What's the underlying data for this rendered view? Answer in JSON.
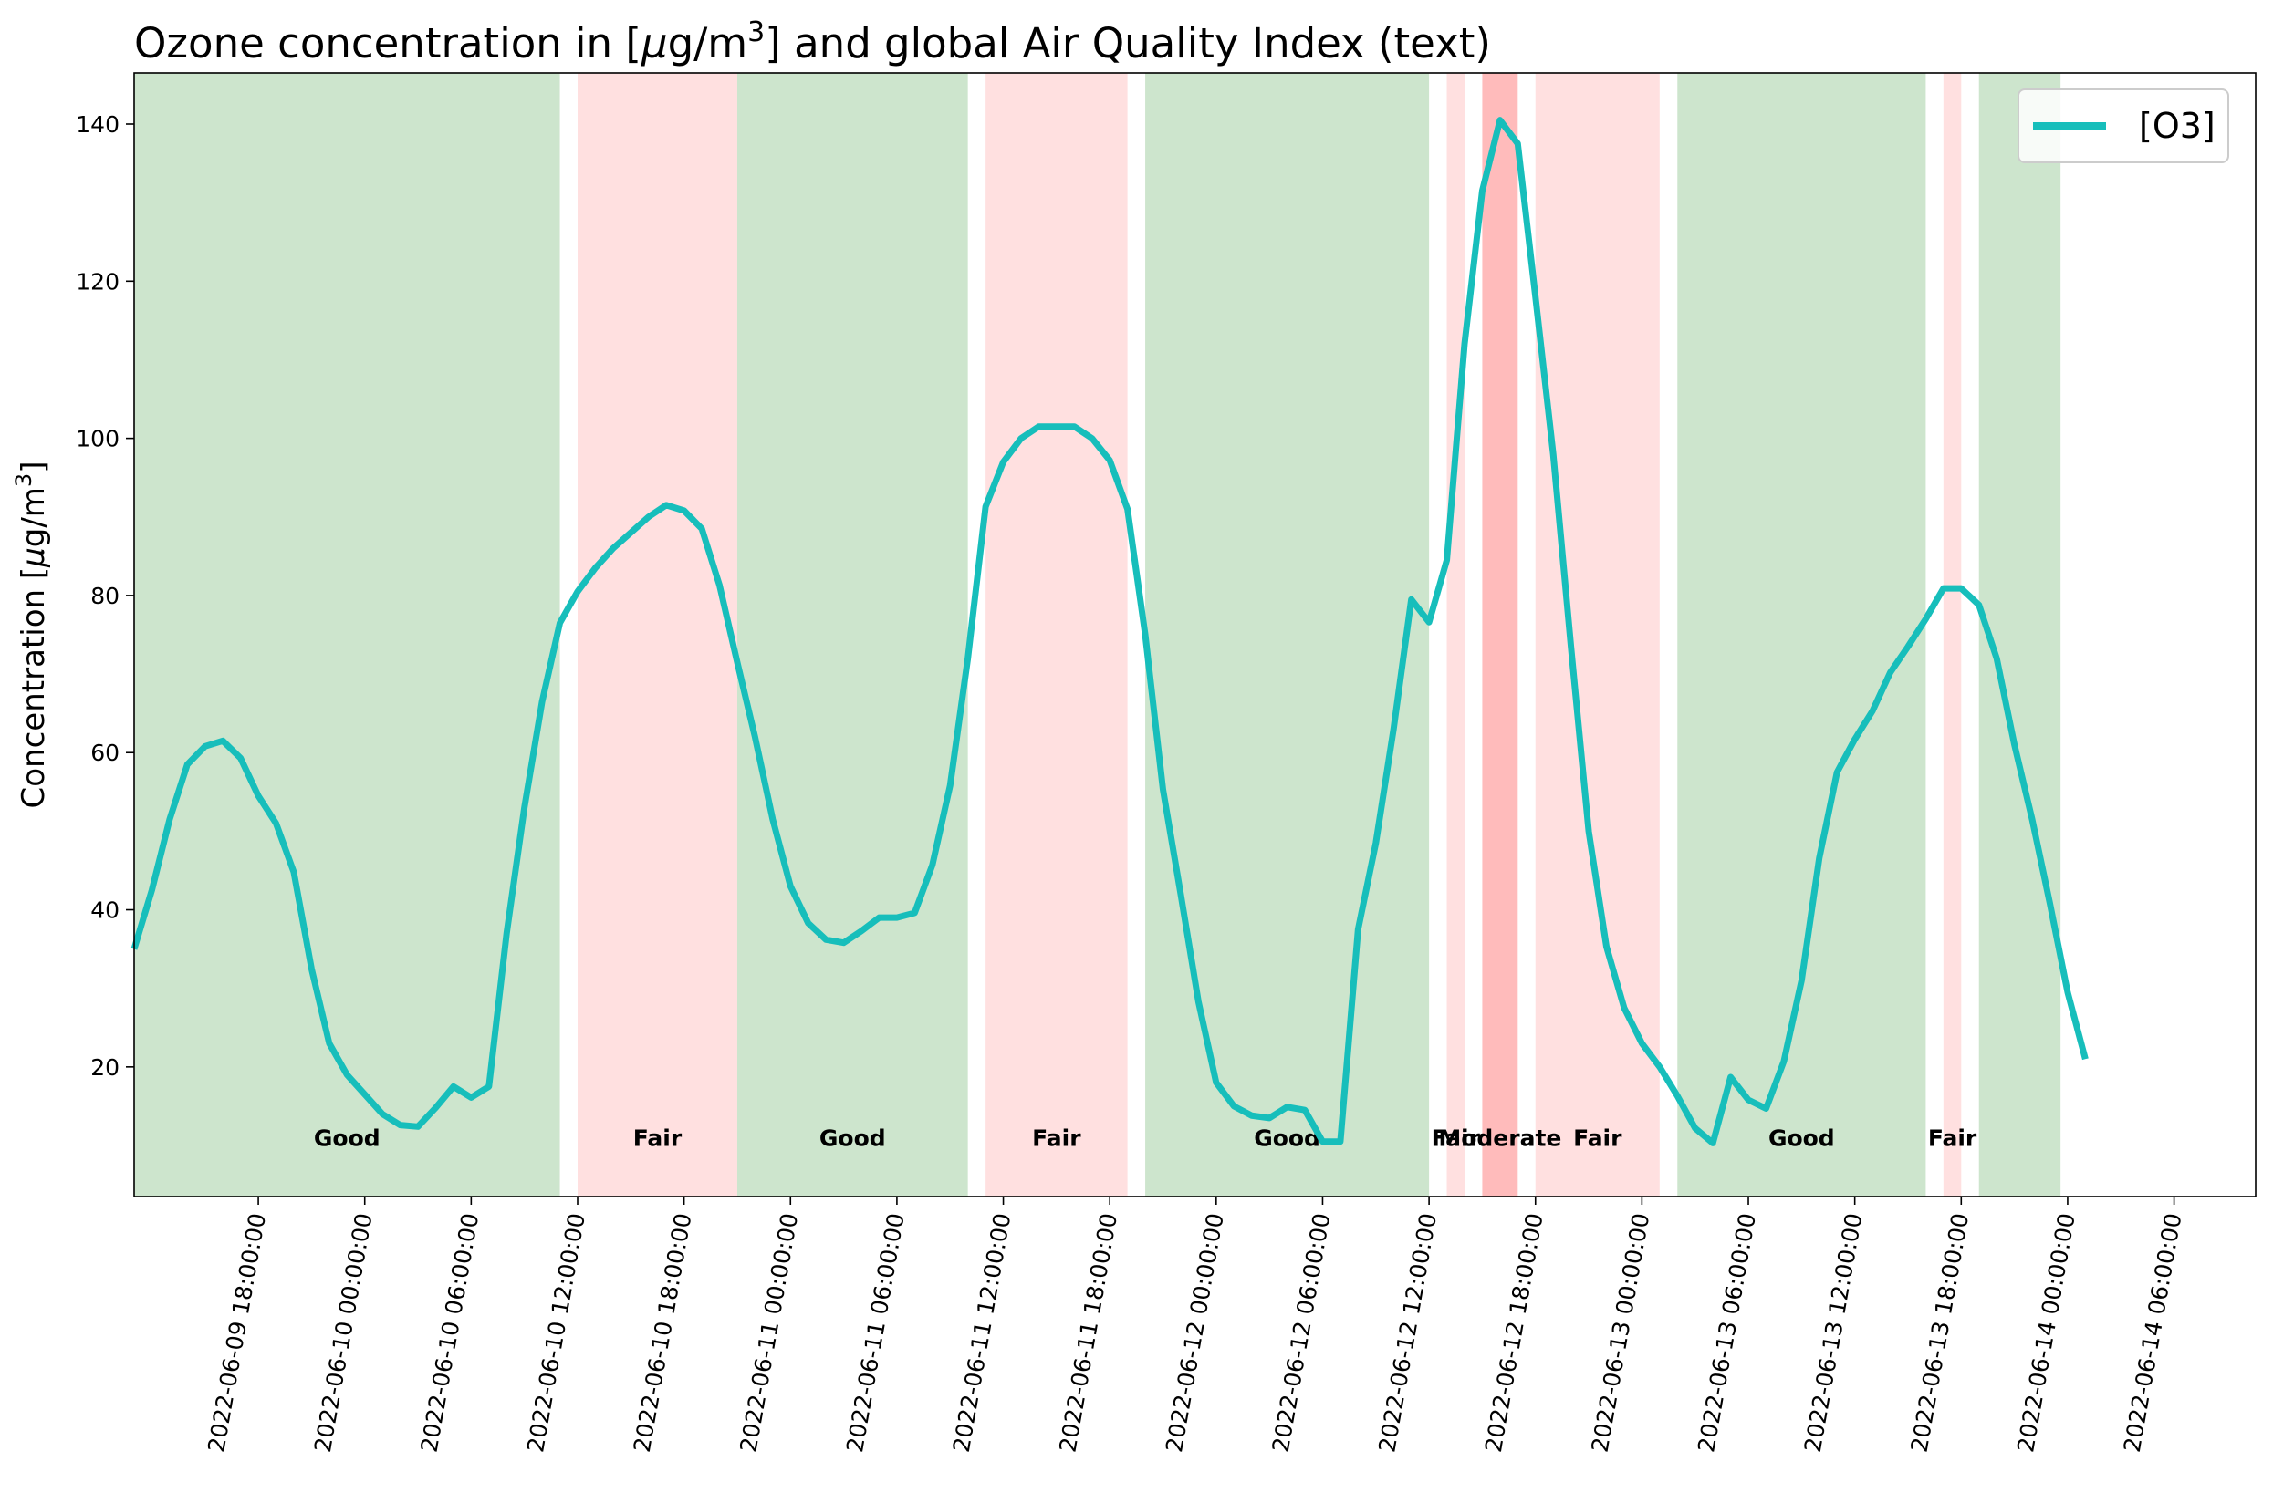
{
  "chart_data": {
    "type": "line",
    "title_prefix": "Ozone concentration in [",
    "title_mu": "μ",
    "title_unit": "g/m",
    "title_sup": "3",
    "title_suffix": "] and global Air Quality Index (text)",
    "ylabel_prefix": "Concentration [",
    "ylabel_mu": "μ",
    "ylabel_unit": "g/m",
    "ylabel_sup": "3",
    "ylabel_suffix": "]",
    "x_start": "2022-06-09 11:00:00",
    "x_step_hours": 1,
    "xlim": [
      "2022-06-09 11:00:00",
      "2022-06-14 10:00:00"
    ],
    "ylim": [
      3.5,
      146.5
    ],
    "yticks": [
      20,
      40,
      60,
      80,
      100,
      120,
      140
    ],
    "xticks": [
      "2022-06-09 18:00:00",
      "2022-06-10 00:00:00",
      "2022-06-10 06:00:00",
      "2022-06-10 12:00:00",
      "2022-06-10 18:00:00",
      "2022-06-11 00:00:00",
      "2022-06-11 06:00:00",
      "2022-06-11 12:00:00",
      "2022-06-11 18:00:00",
      "2022-06-12 00:00:00",
      "2022-06-12 06:00:00",
      "2022-06-12 12:00:00",
      "2022-06-12 18:00:00",
      "2022-06-13 00:00:00",
      "2022-06-13 06:00:00",
      "2022-06-13 12:00:00",
      "2022-06-13 18:00:00",
      "2022-06-14 00:00:00",
      "2022-06-14 06:00:00"
    ],
    "extra_minor_ticks": [
      "2022-06-14 12:00:00"
    ],
    "series": [
      {
        "name": "[O3]",
        "color": "#17bebb",
        "values": [
          35,
          42.5,
          51.5,
          58.5,
          60.8,
          61.5,
          59.3,
          54.5,
          51,
          44.8,
          32.5,
          23,
          19,
          16.5,
          14,
          12.6,
          12.4,
          14.8,
          17.5,
          16.1,
          17.5,
          37,
          53,
          66.5,
          76.5,
          80.5,
          83.5,
          86,
          88,
          90,
          91.5,
          90.8,
          88.5,
          81.3,
          71.5,
          62,
          51.5,
          43,
          38.3,
          36.2,
          35.8,
          37.3,
          39,
          39,
          39.6,
          45.7,
          55.8,
          72,
          91.3,
          97,
          100,
          101.5,
          101.5,
          101.5,
          100,
          97.2,
          91,
          75,
          55.3,
          42,
          28.3,
          18,
          15,
          13.8,
          13.5,
          14.9,
          14.5,
          10.5,
          10.5,
          37.5,
          48.5,
          63,
          79.5,
          76.6,
          84.5,
          112,
          131.5,
          140.5,
          137.5,
          118,
          98,
          73.5,
          50,
          35.3,
          27.5,
          23,
          20,
          16.3,
          12.2,
          10.3,
          18.7,
          15.8,
          14.7,
          20.7,
          31,
          46.6,
          57.5,
          61.7,
          65.3,
          70.2,
          73.5,
          77,
          80.9,
          80.9,
          78.8,
          72,
          61,
          51.5,
          40.8,
          29.5,
          21
        ]
      }
    ],
    "aqi_bands": [
      {
        "start": 0,
        "end": 24,
        "category": "Good",
        "color": "#cde5cd",
        "label": "Good"
      },
      {
        "start": 25,
        "end": 34,
        "category": "Fair",
        "color": "#ffe0e0",
        "label": "Fair"
      },
      {
        "start": 34,
        "end": 47,
        "category": "Good",
        "color": "#cde5cd",
        "label": "Good"
      },
      {
        "start": 48,
        "end": 56,
        "category": "Fair",
        "color": "#ffe0e0",
        "label": "Fair"
      },
      {
        "start": 57,
        "end": 73,
        "category": "Good",
        "color": "#cde5cd",
        "label": "Good"
      },
      {
        "start": 74,
        "end": 75,
        "category": "Fair",
        "color": "#ffe0e0",
        "label": "Fair"
      },
      {
        "start": 76,
        "end": 78,
        "category": "Moderate",
        "color": "#ffbbbb",
        "label": "Moderate"
      },
      {
        "start": 79,
        "end": 86,
        "category": "Fair",
        "color": "#ffe0e0",
        "label": "Fair"
      },
      {
        "start": 87,
        "end": 101,
        "category": "Good",
        "color": "#cde5cd",
        "label": "Good"
      },
      {
        "start": 102,
        "end": 103,
        "category": "Fair",
        "color": "#ffe0e0",
        "label": "Fair"
      },
      {
        "start": 104,
        "end": 108.6,
        "category": "Good",
        "color": "#cde5cd",
        "label": ""
      }
    ],
    "band_label_y": 11,
    "grid": false,
    "legend": {
      "loc": "top-right",
      "labels": [
        "[O3]"
      ]
    }
  }
}
